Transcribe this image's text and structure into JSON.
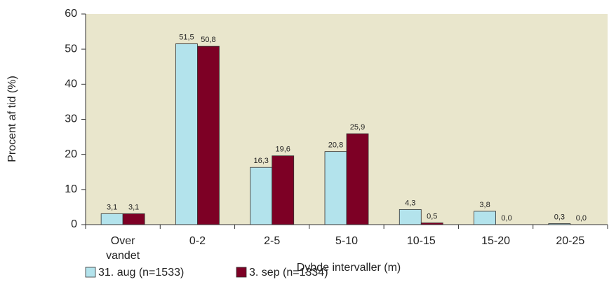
{
  "chart_data": {
    "type": "bar",
    "y_label": "Procent af tid (%)",
    "x_label": "Dybde intervaller (m)",
    "categories": [
      "Over vandet",
      "0-2",
      "2-5",
      "5-10",
      "10-15",
      "15-20",
      "20-25"
    ],
    "series": [
      {
        "name": "31. aug (n=1533)",
        "color": "#b3e3ec",
        "values": [
          3.1,
          51.5,
          16.3,
          20.8,
          4.3,
          3.8,
          0.3
        ],
        "value_labels": [
          "3,1",
          "51,5",
          "16,3",
          "20,8",
          "4,3",
          "3,8",
          "0,3"
        ]
      },
      {
        "name": "3. sep (n=1334)",
        "color": "#7d0025",
        "values": [
          3.1,
          50.8,
          19.6,
          25.9,
          0.5,
          0.0,
          0.0
        ],
        "value_labels": [
          "3,1",
          "50,8",
          "19,6",
          "25,9",
          "0,5",
          "0,0",
          "0,0"
        ]
      }
    ],
    "ylim": [
      0,
      60
    ],
    "yticks": [
      0,
      10,
      20,
      30,
      40,
      50,
      60
    ],
    "plot_background": "#e9e6cc"
  }
}
